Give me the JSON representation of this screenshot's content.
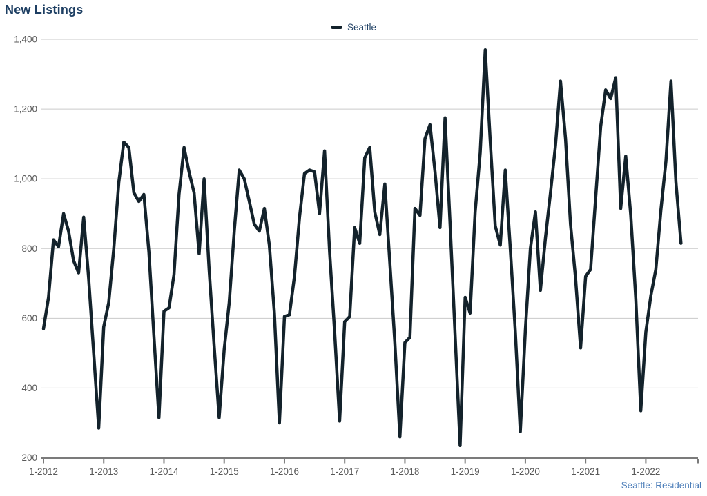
{
  "title": "New Listings",
  "legend": {
    "label": "Seattle"
  },
  "footer_note": "Seattle: Residential",
  "colors": {
    "title": "#1e3f63",
    "legend_text": "#1e3f63",
    "line": "#13222b",
    "grid": "#cacaca",
    "axis": "#7b7b7b",
    "axis_labels": "#595959",
    "footer": "#4a7cb8"
  },
  "chart_data": {
    "type": "line",
    "title": "New Listings",
    "x_unit": "month",
    "x_start": "1-2012",
    "x_end": "8-2022",
    "x_tick_labels": [
      "1-2012",
      "1-2013",
      "1-2014",
      "1-2015",
      "1-2016",
      "1-2017",
      "1-2018",
      "1-2019",
      "1-2020",
      "1-2021",
      "1-2022"
    ],
    "months_per_tick": 12,
    "ylim": [
      200,
      1400
    ],
    "y_ticks": [
      200,
      400,
      600,
      800,
      1000,
      1200,
      1400
    ],
    "grid": "horizontal",
    "legend_position": "top-center",
    "series": [
      {
        "name": "Seattle",
        "color": "#13222b",
        "values": [
          570,
          660,
          825,
          805,
          900,
          850,
          765,
          730,
          890,
          715,
          500,
          285,
          575,
          645,
          800,
          990,
          1105,
          1090,
          960,
          935,
          955,
          790,
          550,
          315,
          620,
          630,
          725,
          955,
          1090,
          1020,
          960,
          785,
          1000,
          740,
          520,
          315,
          510,
          645,
          850,
          1025,
          1000,
          935,
          870,
          850,
          915,
          810,
          615,
          300,
          605,
          610,
          720,
          890,
          1015,
          1025,
          1020,
          900,
          1080,
          790,
          560,
          305,
          590,
          605,
          860,
          815,
          1060,
          1090,
          905,
          840,
          985,
          760,
          530,
          260,
          530,
          545,
          915,
          895,
          1115,
          1155,
          1020,
          860,
          1175,
          870,
          555,
          235,
          660,
          615,
          905,
          1075,
          1370,
          1110,
          865,
          810,
          1025,
          800,
          560,
          275,
          565,
          800,
          905,
          680,
          830,
          960,
          1095,
          1280,
          1115,
          870,
          715,
          515,
          720,
          740,
          945,
          1150,
          1255,
          1230,
          1290,
          915,
          1065,
          895,
          655,
          335,
          560,
          665,
          740,
          910,
          1050,
          1280,
          990,
          815
        ]
      }
    ]
  }
}
